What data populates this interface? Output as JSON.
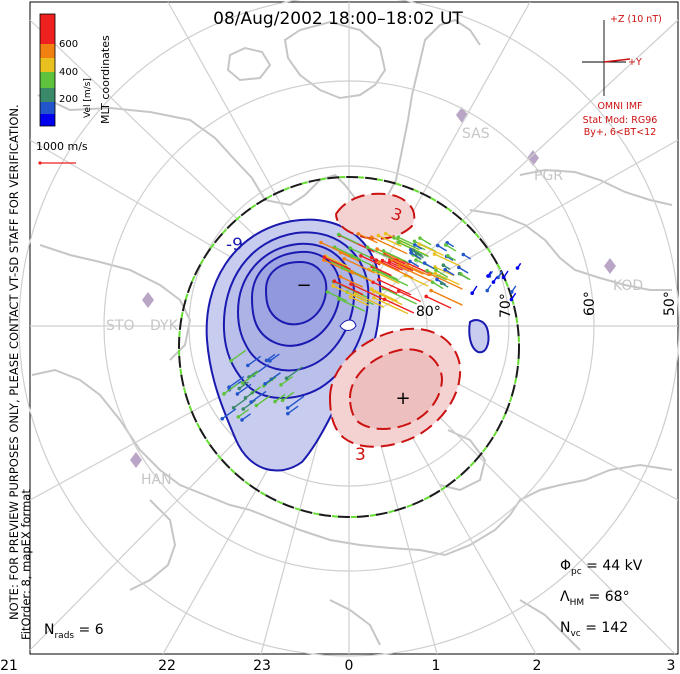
{
  "title": "08/Aug/2002 18:00–18:02 UT",
  "colorbar": {
    "label": "Vel [m/s]",
    "ticks": [
      "600",
      "400",
      "200"
    ],
    "colors": [
      "#0000ee",
      "#2255cc",
      "#3a8a6a",
      "#5ec23c",
      "#e8c020",
      "#f08010",
      "#ee2020"
    ]
  },
  "coord_label": "MLT coordinates",
  "scale_vector": "1000 m/s",
  "notes": {
    "line1": "NOTE: FOR PREVIEW PURPOSES ONLY, PLEASE CONTACT VT-SD STAFF FOR VERIFICATION.",
    "line2": "FitOrder: 8, mapEX format"
  },
  "imf": {
    "z_label": "+Z (10 nT)",
    "y_label": "+Y",
    "source": "OMNI IMF",
    "model": "Stat Mod: RG96",
    "condition": "By+, 6<BT<12"
  },
  "stations": [
    "SAS",
    "PGR",
    "KOD",
    "STO",
    "DYK",
    "HAN"
  ],
  "latitude_labels": [
    "80°",
    "70°",
    "60°",
    "50°"
  ],
  "mlt_ticks": [
    "21",
    "22",
    "23",
    "0",
    "1",
    "2",
    "3"
  ],
  "contour_labels": {
    "neg": "-9",
    "pos": "3",
    "pos_top": "3"
  },
  "extrema": {
    "min": "−",
    "max": "+"
  },
  "stats": {
    "phi_pc": "Φpc = 44 kV",
    "lambda_hm": "ΛHM = 68°",
    "n_vc": "Nvc = 142",
    "n_rads": "Nrads = 6"
  },
  "stats_parts": {
    "phi_sym": "Φ",
    "phi_sub": "pc",
    "phi_val": " = 44 kV",
    "lam_sym": "Λ",
    "lam_sub": "HM",
    "lam_val": " = 68°",
    "n_sym": "N",
    "nvc_sub": "vc",
    "nvc_val": " = 142",
    "nrads_sub": "rads",
    "nrads_val": " = 6"
  },
  "colors": {
    "neg_fill": "#c8ccef",
    "neg_line": "#1a1ab0",
    "pos_fill": "#f4d2d2",
    "pos_line": "#cc1111",
    "land": "#c6c6c6",
    "grid": "#cfcfcf",
    "boundary": "#1a1a1a",
    "boundary_dash": "#66dd33"
  }
}
